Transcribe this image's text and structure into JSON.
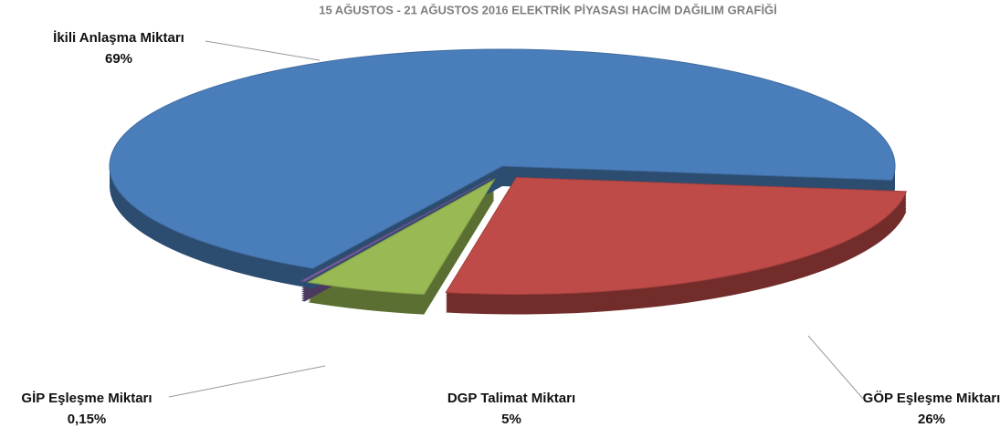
{
  "chart_data": {
    "type": "pie",
    "title": "15 AĞUSTOS - 21 AĞUSTOS 2016 ELEKTRİK PİYASASI HACİM DAĞILIM GRAFİĞİ",
    "categories": [
      "GÖP Eşleşme Miktarı",
      "DGP Talimat Miktarı",
      "GİP Eşleşme Miktarı",
      "İkili Anlaşma Miktarı"
    ],
    "values": [
      26,
      5,
      0.15,
      69
    ],
    "value_labels": [
      "26%",
      "5%",
      "0,15%",
      "69%"
    ],
    "colors": [
      "#be4b48",
      "#98b954",
      "#7d60a0",
      "#4a7ebb"
    ]
  }
}
